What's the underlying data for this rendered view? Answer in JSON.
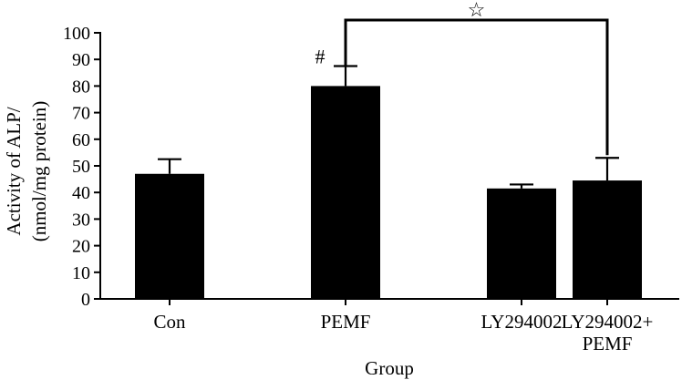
{
  "chart_data": {
    "type": "bar",
    "categories": [
      "Con",
      "PEMF",
      "LY294002",
      "LY294002+\nPEMF"
    ],
    "values": [
      47,
      80,
      41.5,
      44.5
    ],
    "errors": [
      5.5,
      7.5,
      1.5,
      8.5
    ],
    "xlabel": "Group",
    "ylabel_lines": [
      "Activity of ALP/",
      "(nmol/mg protein)"
    ],
    "ylim": [
      0,
      100
    ],
    "yticks": [
      0,
      10,
      20,
      30,
      40,
      50,
      60,
      70,
      80,
      90,
      100
    ],
    "bar_color": "#000000",
    "annotations": [
      {
        "text": "#",
        "category_index": 1
      },
      {
        "text": "☆",
        "from_index": 1,
        "to_index": 3
      }
    ]
  }
}
